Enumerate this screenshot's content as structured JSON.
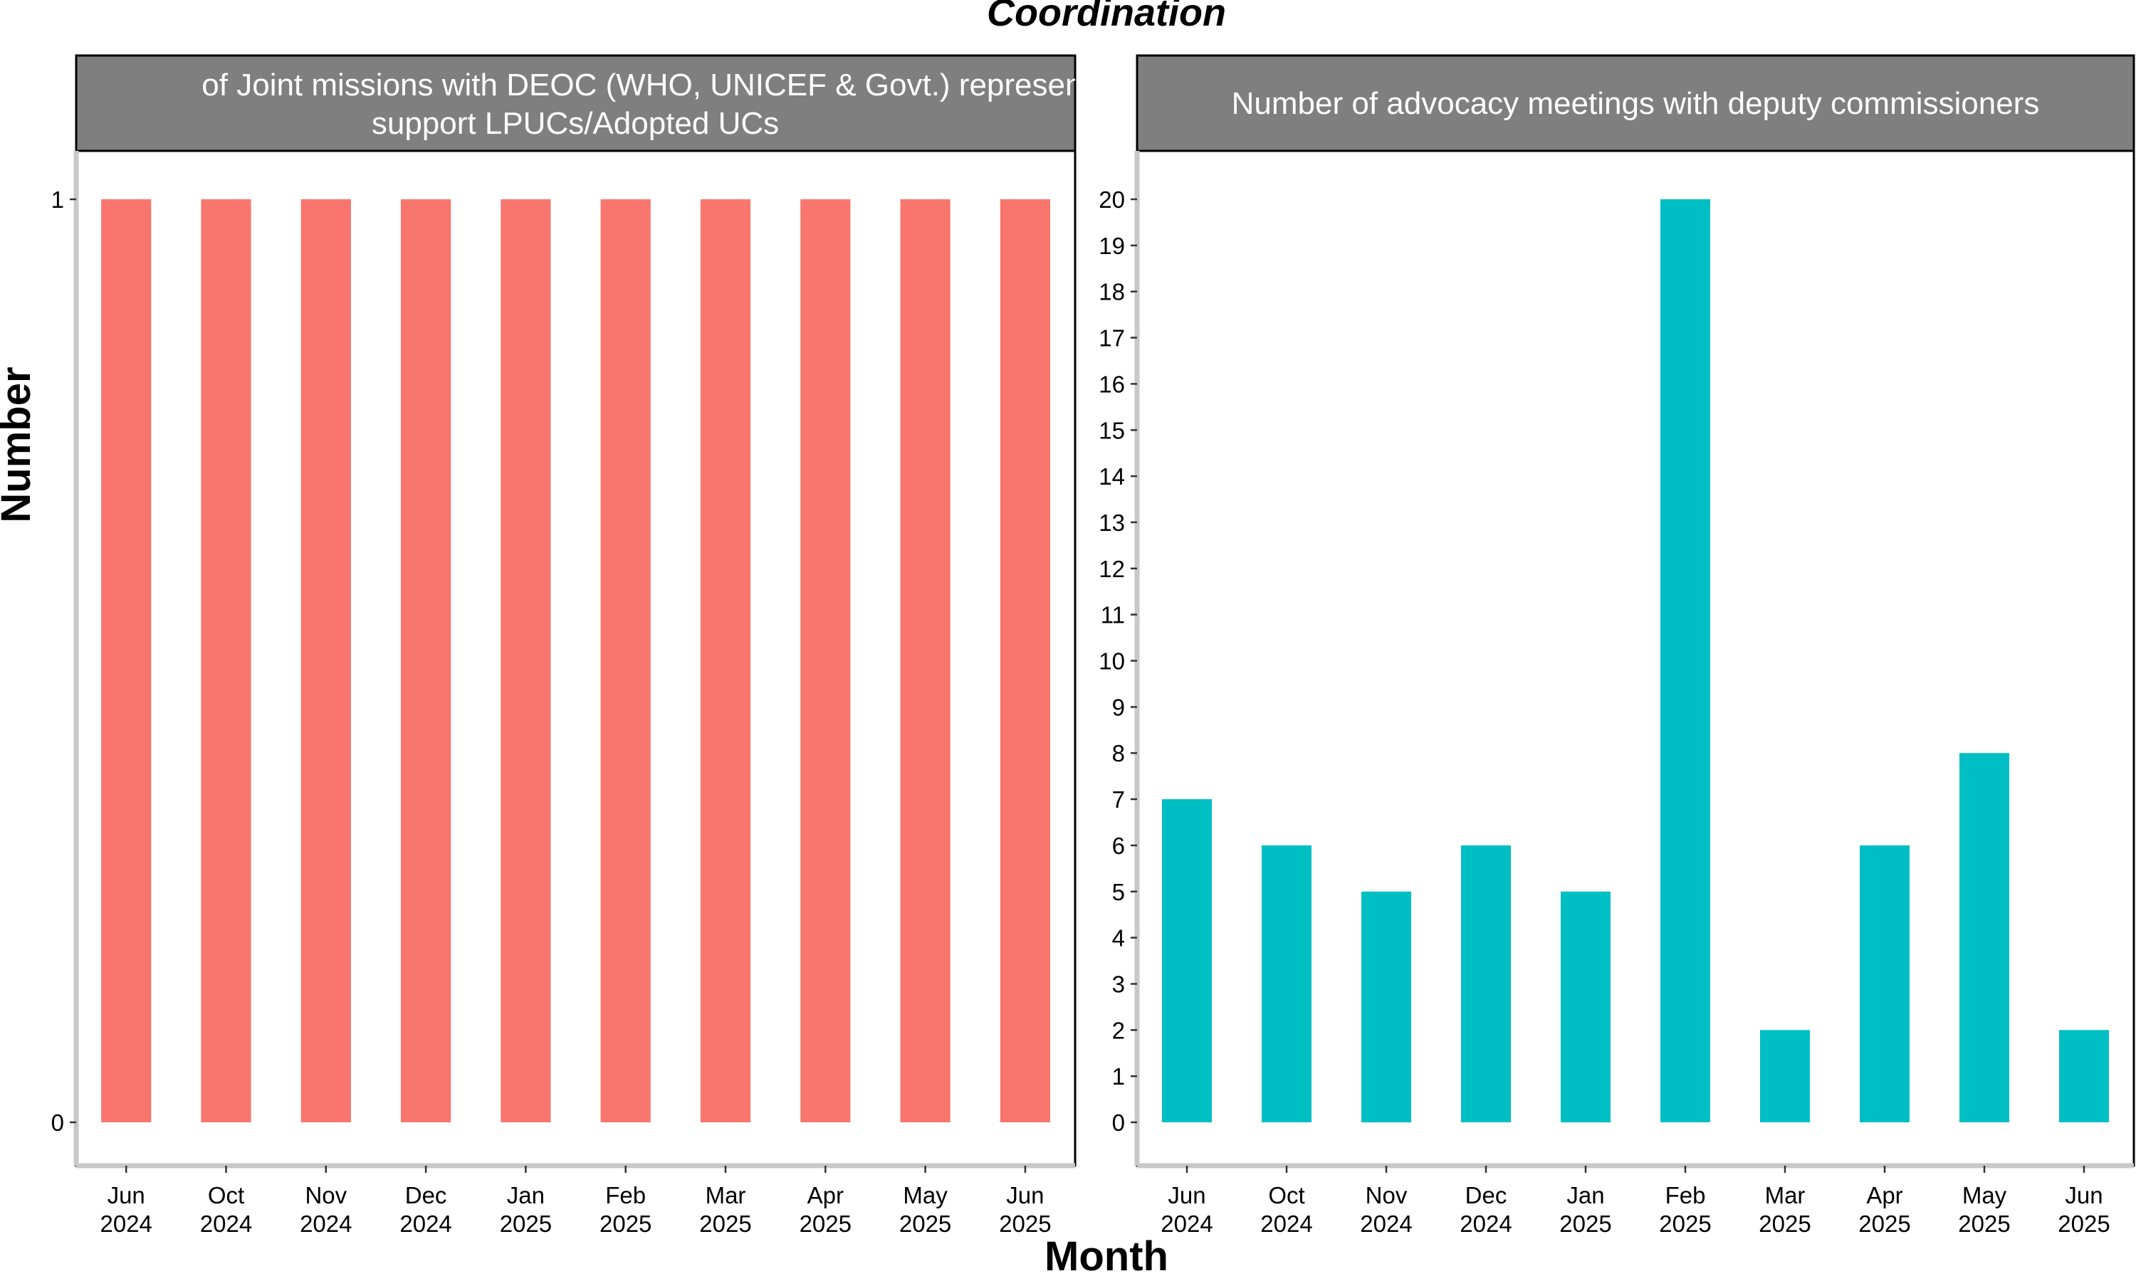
{
  "chart_data": {
    "type": "bar",
    "title": "Coordination",
    "xlabel": "Month",
    "ylabel": "Number",
    "grid": false,
    "legend": "none",
    "categories": [
      [
        "Jun",
        "2024"
      ],
      [
        "Oct",
        "2024"
      ],
      [
        "Nov",
        "2024"
      ],
      [
        "Dec",
        "2024"
      ],
      [
        "Jan",
        "2025"
      ],
      [
        "Feb",
        "2025"
      ],
      [
        "Mar",
        "2025"
      ],
      [
        "Apr",
        "2025"
      ],
      [
        "May",
        "2025"
      ],
      [
        "Jun",
        "2025"
      ]
    ],
    "panels": [
      {
        "strip_lines": [
          "of Joint missions with DEOC (WHO, UNICEF & Govt.) represent",
          "support LPUCs/Adopted UCs"
        ],
        "color": "#F8766D",
        "ylim": [
          0,
          1
        ],
        "yticks": [
          0,
          1
        ],
        "values": [
          1,
          1,
          1,
          1,
          1,
          1,
          1,
          1,
          1,
          1
        ]
      },
      {
        "strip_lines": [
          "Number of advocacy meetings with deputy commissioners"
        ],
        "color": "#00BFC4",
        "ylim": [
          0,
          20
        ],
        "yticks": [
          0,
          1,
          2,
          3,
          4,
          5,
          6,
          7,
          8,
          9,
          10,
          11,
          12,
          13,
          14,
          15,
          16,
          17,
          18,
          19,
          20
        ],
        "values": [
          7,
          6,
          5,
          6,
          5,
          20,
          2,
          6,
          8,
          2
        ]
      }
    ]
  },
  "colors": {
    "strip_bg": "#7F7F7F",
    "axis_line": "#C8C8C8"
  }
}
